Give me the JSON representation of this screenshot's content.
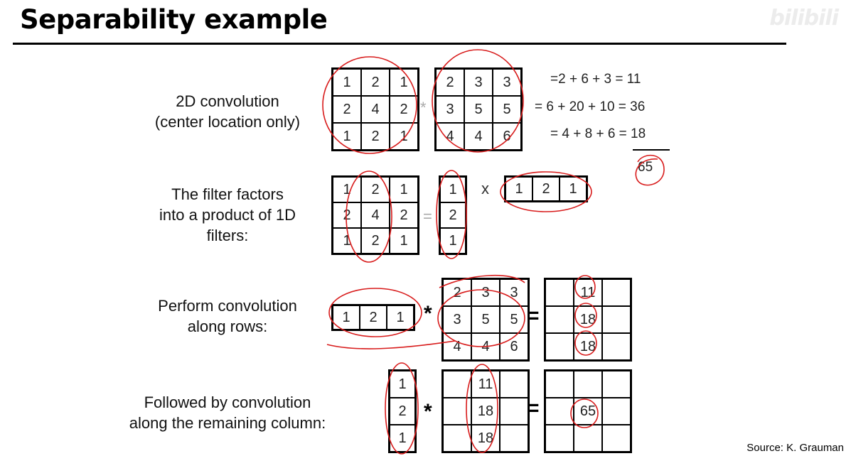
{
  "slide": {
    "title": "Separability example",
    "watermark": "bilibili",
    "source": "Source: K. Grauman"
  },
  "row1": {
    "label": [
      "2D convolution",
      "(center location only)"
    ],
    "filter": [
      [
        "1",
        "2",
        "1"
      ],
      [
        "2",
        "4",
        "2"
      ],
      [
        "1",
        "2",
        "1"
      ]
    ],
    "operator": "*",
    "image": [
      [
        "2",
        "3",
        "3"
      ],
      [
        "3",
        "5",
        "5"
      ],
      [
        "4",
        "4",
        "6"
      ]
    ],
    "equations": [
      "=2 + 6 + 3 = 11",
      "= 6 + 20 + 10 = 36",
      "= 4 + 8 + 6 = 18"
    ],
    "sum": "65"
  },
  "row2": {
    "label": [
      "The filter factors",
      "into a product of 1D",
      "filters:"
    ],
    "filter": [
      [
        "1",
        "2",
        "1"
      ],
      [
        "2",
        "4",
        "2"
      ],
      [
        "1",
        "2",
        "1"
      ]
    ],
    "equals": "=",
    "column": [
      [
        "1"
      ],
      [
        "2"
      ],
      [
        "1"
      ]
    ],
    "times": "x",
    "row": [
      [
        "1",
        "2",
        "1"
      ]
    ]
  },
  "row3": {
    "label": [
      "Perform convolution",
      "along rows:"
    ],
    "row_filter": [
      [
        "1",
        "2",
        "1"
      ]
    ],
    "operator": "*",
    "image": [
      [
        "2",
        "3",
        "3"
      ],
      [
        "3",
        "5",
        "5"
      ],
      [
        "4",
        "4",
        "6"
      ]
    ],
    "equals": "=",
    "result": [
      [
        "",
        "11",
        ""
      ],
      [
        "",
        "18",
        ""
      ],
      [
        "",
        "18",
        ""
      ]
    ]
  },
  "row4": {
    "label": [
      "Followed by convolution",
      "along the remaining column:"
    ],
    "column_filter": [
      [
        "1"
      ],
      [
        "2"
      ],
      [
        "1"
      ]
    ],
    "operator": "*",
    "intermediate": [
      [
        "",
        "11",
        ""
      ],
      [
        "",
        "18",
        ""
      ],
      [
        "",
        "18",
        ""
      ]
    ],
    "equals": "=",
    "result": [
      [
        "",
        "",
        ""
      ],
      [
        "",
        "65",
        ""
      ],
      [
        "",
        "",
        ""
      ]
    ]
  }
}
